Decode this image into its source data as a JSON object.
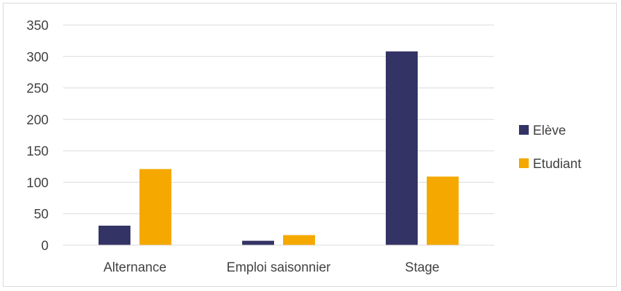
{
  "chart_data": {
    "type": "bar",
    "title": "",
    "xlabel": "",
    "ylabel": "",
    "categories": [
      "Alternance",
      "Emploi saisonnier",
      "Stage"
    ],
    "series": [
      {
        "name": "Elève",
        "values": [
          31,
          7,
          308
        ],
        "color": "#333366"
      },
      {
        "name": "Etudiant",
        "values": [
          121,
          16,
          109
        ],
        "color": "#f5a800"
      }
    ],
    "ylim": [
      0,
      350
    ],
    "yticks": [
      "0",
      "50",
      "100",
      "150",
      "200",
      "250",
      "300",
      "350"
    ],
    "grid": true,
    "gridline_color": "#d9d9d9",
    "legend_position": "right"
  }
}
